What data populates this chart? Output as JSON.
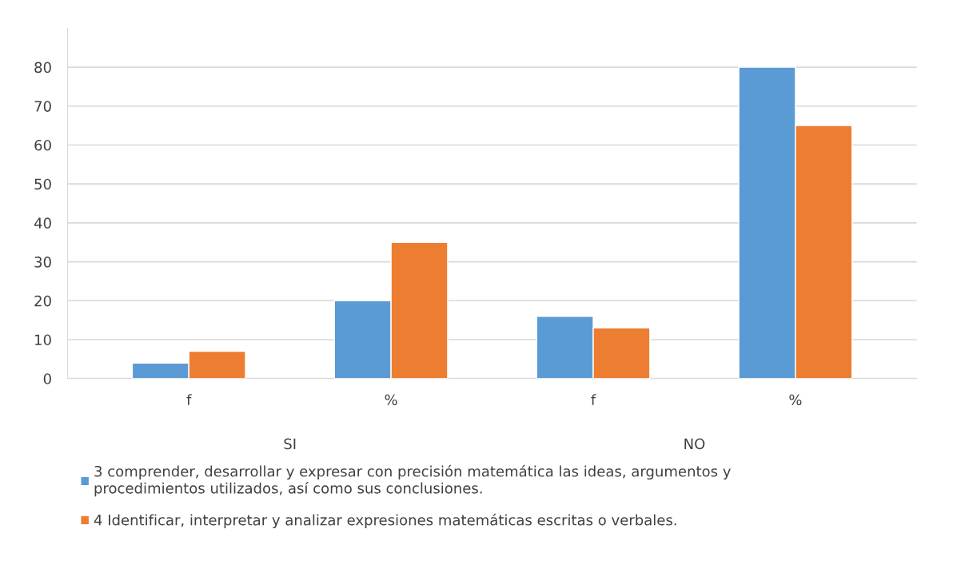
{
  "chart_data": {
    "type": "bar",
    "categories": [
      "f",
      "%",
      "f",
      "%"
    ],
    "series": [
      {
        "name": "3 comprender, desarrollar y expresar con precisión matemática las ideas, argumentos y procedimientos utilizados, así como sus conclusiones.",
        "color": "#5b9bd5",
        "values": [
          4,
          20,
          16,
          80
        ]
      },
      {
        "name": "4 Identificar, interpretar y analizar expresiones matemáticas escritas o verbales.",
        "color": "#ed7d31",
        "values": [
          7,
          35,
          13,
          65
        ]
      }
    ],
    "annotations": [
      "SI",
      "NO"
    ],
    "ylim": [
      0,
      90
    ],
    "yticks": [
      0,
      10,
      20,
      30,
      40,
      50,
      60,
      70,
      80
    ],
    "grid": "y",
    "legend": "bottom"
  }
}
